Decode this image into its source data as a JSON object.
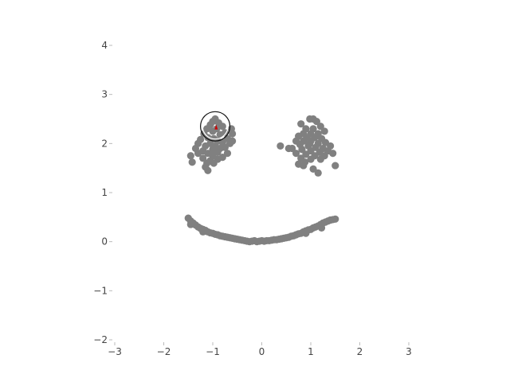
{
  "chart_data": {
    "type": "scatter",
    "title": "",
    "xlabel": "",
    "ylabel": "",
    "xlim": [
      -3,
      3
    ],
    "ylim": [
      -2,
      4
    ],
    "grid": false,
    "legend": "none",
    "xticks": [
      -3,
      -2,
      -1,
      0,
      1,
      2,
      3
    ],
    "yticks": [
      -2,
      -1,
      0,
      1,
      2,
      3,
      4
    ],
    "xtick_labels": [
      "−3",
      "−2",
      "−1",
      "0",
      "1",
      "2",
      "3"
    ],
    "ytick_labels": [
      "−2",
      "−1",
      "0",
      "1",
      "2",
      "3",
      "4"
    ],
    "series": [
      {
        "color": "#808080",
        "points": [
          [
            -1.0,
            2.45
          ],
          [
            -0.95,
            2.5
          ],
          [
            -1.05,
            2.38
          ],
          [
            -0.88,
            2.42
          ],
          [
            -1.12,
            2.3
          ],
          [
            -0.8,
            2.35
          ],
          [
            -0.92,
            2.3
          ],
          [
            -1.0,
            2.25
          ],
          [
            -1.18,
            2.2
          ],
          [
            -0.75,
            2.22
          ],
          [
            -0.85,
            2.18
          ],
          [
            -1.1,
            2.12
          ],
          [
            -0.98,
            2.1
          ],
          [
            -0.7,
            2.1
          ],
          [
            -1.25,
            2.08
          ],
          [
            -0.9,
            2.05
          ],
          [
            -0.8,
            2.02
          ],
          [
            -1.05,
            2.0
          ],
          [
            -1.3,
            2.0
          ],
          [
            -0.65,
            2.0
          ],
          [
            -0.95,
            1.95
          ],
          [
            -1.15,
            1.95
          ],
          [
            -0.75,
            1.92
          ],
          [
            -0.85,
            1.9
          ],
          [
            -1.35,
            1.9
          ],
          [
            -1.0,
            1.88
          ],
          [
            -1.2,
            1.85
          ],
          [
            -0.6,
            2.2
          ],
          [
            -0.9,
            1.82
          ],
          [
            -1.1,
            1.8
          ],
          [
            -0.7,
            1.8
          ],
          [
            -1.3,
            1.8
          ],
          [
            -1.0,
            1.75
          ],
          [
            -0.8,
            1.72
          ],
          [
            -1.2,
            1.7
          ],
          [
            -1.05,
            1.65
          ],
          [
            -0.9,
            1.68
          ],
          [
            -1.12,
            1.6
          ],
          [
            -0.98,
            1.6
          ],
          [
            -1.45,
            1.75
          ],
          [
            -1.42,
            1.62
          ],
          [
            -1.15,
            1.52
          ],
          [
            -1.1,
            1.45
          ],
          [
            -0.62,
            2.3
          ],
          [
            -0.6,
            2.05
          ],
          [
            0.8,
            2.4
          ],
          [
            0.98,
            2.5
          ],
          [
            1.05,
            2.5
          ],
          [
            1.12,
            2.45
          ],
          [
            0.9,
            2.3
          ],
          [
            1.05,
            2.3
          ],
          [
            1.2,
            2.35
          ],
          [
            0.85,
            2.2
          ],
          [
            1.0,
            2.2
          ],
          [
            1.15,
            2.2
          ],
          [
            1.28,
            2.25
          ],
          [
            0.75,
            2.15
          ],
          [
            0.92,
            2.12
          ],
          [
            1.08,
            2.12
          ],
          [
            1.22,
            2.1
          ],
          [
            0.7,
            2.05
          ],
          [
            0.85,
            2.05
          ],
          [
            1.0,
            2.05
          ],
          [
            1.15,
            2.0
          ],
          [
            1.3,
            2.02
          ],
          [
            0.78,
            1.98
          ],
          [
            0.95,
            1.95
          ],
          [
            1.1,
            1.92
          ],
          [
            1.25,
            1.9
          ],
          [
            1.4,
            1.95
          ],
          [
            0.62,
            1.9
          ],
          [
            0.82,
            1.88
          ],
          [
            1.0,
            1.85
          ],
          [
            1.18,
            1.82
          ],
          [
            1.35,
            1.85
          ],
          [
            0.7,
            1.8
          ],
          [
            0.9,
            1.78
          ],
          [
            1.08,
            1.75
          ],
          [
            1.28,
            1.75
          ],
          [
            1.45,
            1.8
          ],
          [
            0.8,
            1.7
          ],
          [
            1.0,
            1.68
          ],
          [
            1.2,
            1.68
          ],
          [
            0.88,
            1.62
          ],
          [
            0.75,
            1.58
          ],
          [
            0.85,
            1.55
          ],
          [
            1.05,
            1.48
          ],
          [
            1.15,
            1.4
          ],
          [
            1.5,
            1.55
          ],
          [
            0.38,
            1.95
          ],
          [
            0.55,
            1.9
          ],
          [
            0.98,
            2.0
          ],
          [
            -1.5,
            0.48
          ],
          [
            -1.45,
            0.42
          ],
          [
            -1.4,
            0.38
          ],
          [
            -1.35,
            0.34
          ],
          [
            -1.3,
            0.3
          ],
          [
            -1.25,
            0.27
          ],
          [
            -1.2,
            0.25
          ],
          [
            -1.15,
            0.23
          ],
          [
            -1.1,
            0.2
          ],
          [
            -1.05,
            0.18
          ],
          [
            -1.0,
            0.17
          ],
          [
            -0.95,
            0.15
          ],
          [
            -0.9,
            0.14
          ],
          [
            -0.85,
            0.12
          ],
          [
            -0.8,
            0.11
          ],
          [
            -0.75,
            0.1
          ],
          [
            -0.7,
            0.09
          ],
          [
            -0.65,
            0.08
          ],
          [
            -0.6,
            0.07
          ],
          [
            -0.55,
            0.06
          ],
          [
            -0.5,
            0.05
          ],
          [
            -0.45,
            0.04
          ],
          [
            -0.4,
            0.03
          ],
          [
            -0.35,
            0.02
          ],
          [
            -0.3,
            0.01
          ],
          [
            -0.25,
            0.0
          ],
          [
            -0.2,
            0.01
          ],
          [
            -0.15,
            0.02
          ],
          [
            -0.1,
            0.0
          ],
          [
            -0.05,
            0.01
          ],
          [
            0.0,
            0.02
          ],
          [
            0.05,
            0.01
          ],
          [
            0.1,
            0.02
          ],
          [
            0.15,
            0.02
          ],
          [
            0.2,
            0.03
          ],
          [
            0.25,
            0.04
          ],
          [
            0.3,
            0.04
          ],
          [
            0.35,
            0.05
          ],
          [
            0.4,
            0.06
          ],
          [
            0.45,
            0.07
          ],
          [
            0.5,
            0.08
          ],
          [
            0.55,
            0.09
          ],
          [
            0.6,
            0.11
          ],
          [
            0.65,
            0.12
          ],
          [
            0.7,
            0.14
          ],
          [
            0.75,
            0.16
          ],
          [
            0.8,
            0.17
          ],
          [
            0.85,
            0.2
          ],
          [
            0.9,
            0.22
          ],
          [
            0.95,
            0.24
          ],
          [
            1.0,
            0.25
          ],
          [
            1.05,
            0.28
          ],
          [
            1.1,
            0.3
          ],
          [
            1.15,
            0.32
          ],
          [
            1.2,
            0.35
          ],
          [
            1.25,
            0.38
          ],
          [
            1.3,
            0.4
          ],
          [
            1.35,
            0.42
          ],
          [
            1.4,
            0.44
          ],
          [
            1.45,
            0.45
          ],
          [
            1.5,
            0.46
          ],
          [
            -1.45,
            0.35
          ],
          [
            -1.2,
            0.2
          ],
          [
            1.22,
            0.28
          ],
          [
            0.9,
            0.17
          ]
        ]
      }
    ],
    "highlight_point": {
      "x": -0.93,
      "y": 2.32,
      "color": "#cc0000"
    },
    "annotation_circle": {
      "cx": -0.95,
      "cy": 2.35,
      "r": 0.3,
      "color": "#111111"
    }
  }
}
